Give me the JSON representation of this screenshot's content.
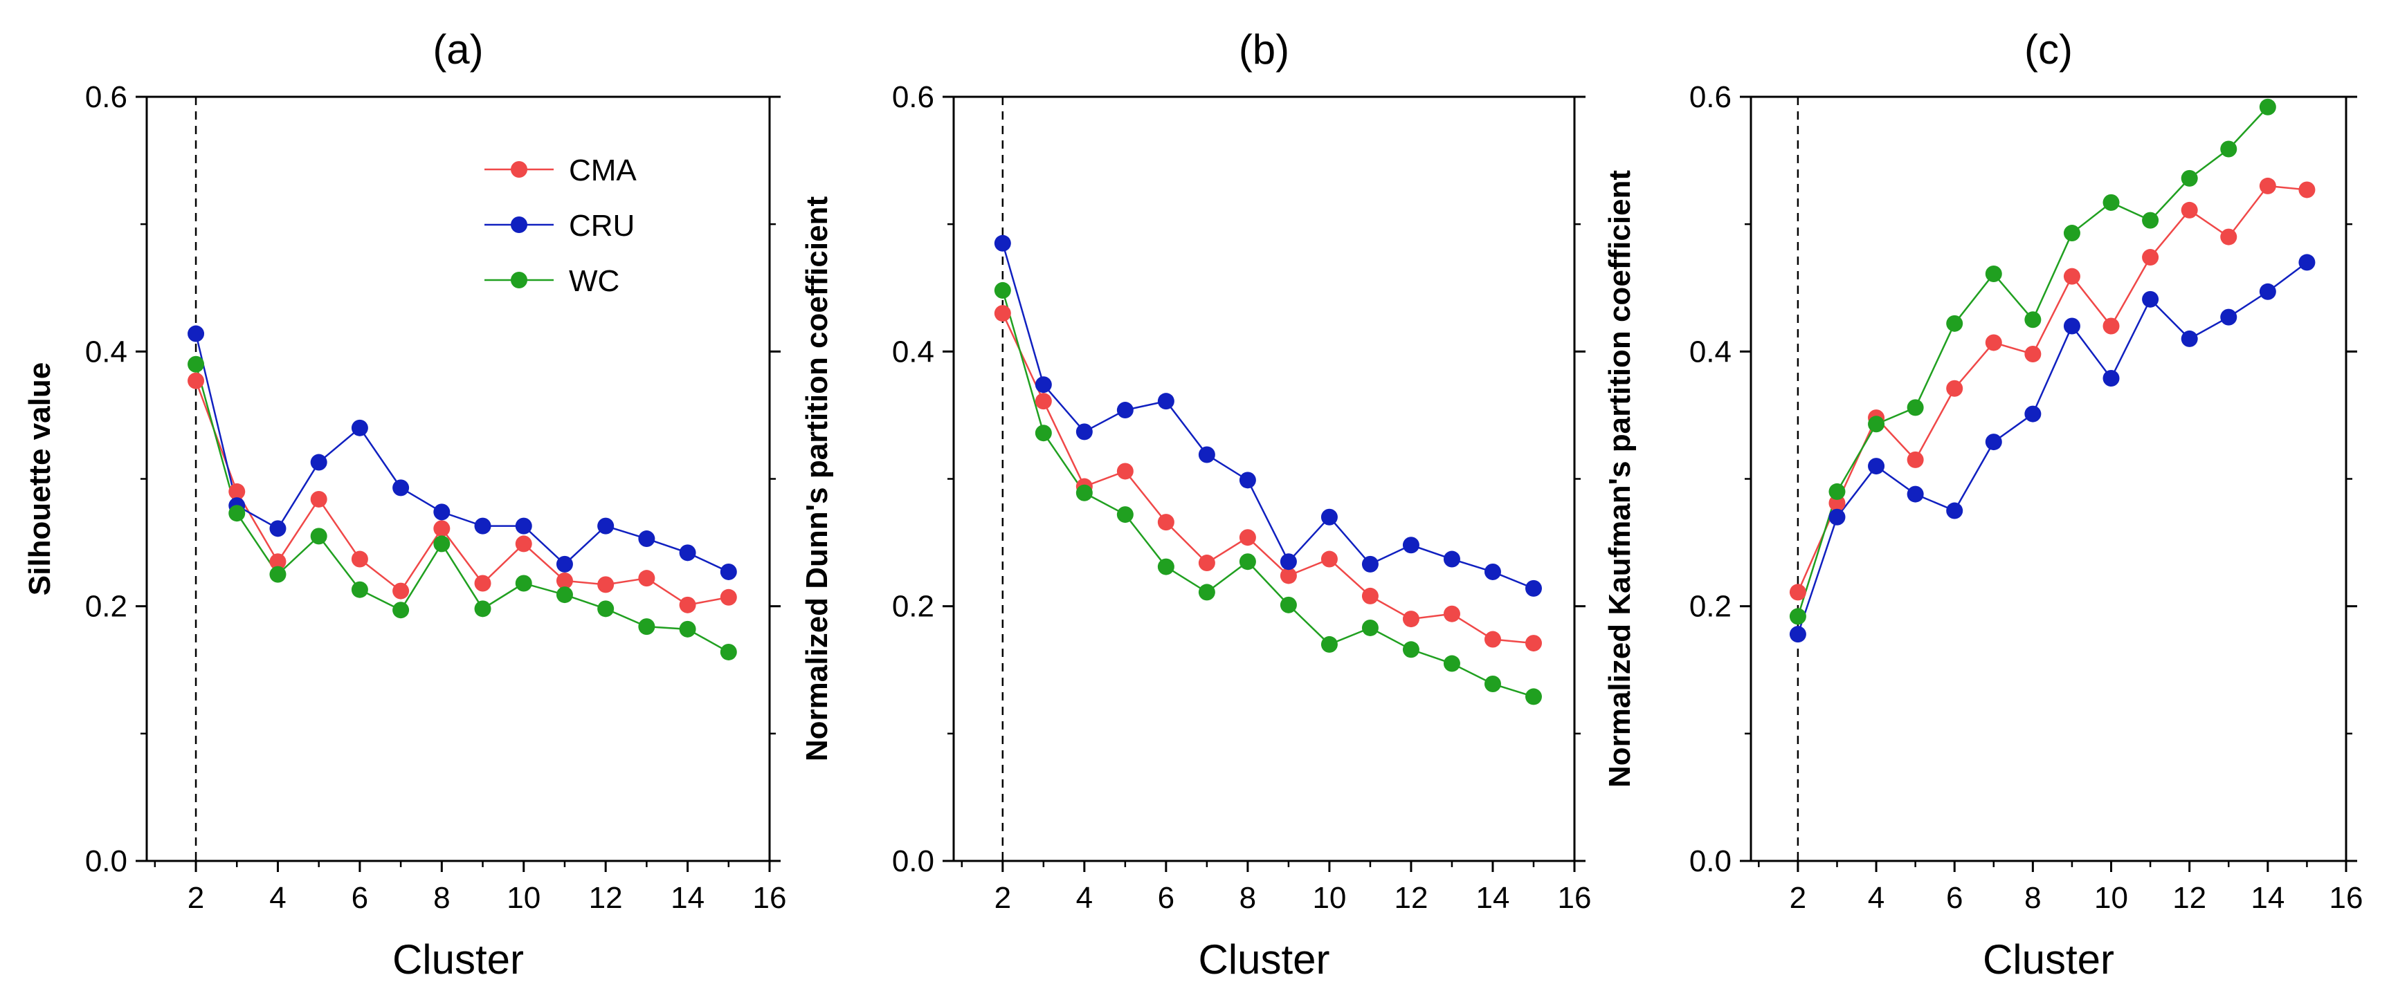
{
  "colors": {
    "CMA": "#f04848",
    "CRU": "#1020c0",
    "WC": "#20a020"
  },
  "chart_data": [
    {
      "type": "line",
      "title": "(a)",
      "xlabel": "Cluster",
      "ylabel": "Silhouette value",
      "xlim": [
        0.8,
        16
      ],
      "ylim": [
        0,
        0.6
      ],
      "xticks": [
        2,
        4,
        6,
        8,
        10,
        12,
        14,
        16
      ],
      "yticks": [
        0.0,
        0.2,
        0.4,
        0.6
      ],
      "ytick_labels": [
        "0.0",
        "0.2",
        "0.4",
        "0.6"
      ],
      "marker_line_x": 2,
      "x": [
        2,
        3,
        4,
        5,
        6,
        7,
        8,
        9,
        10,
        11,
        12,
        13,
        14,
        15
      ],
      "legend": {
        "position": "top-right",
        "entries": [
          "CMA",
          "CRU",
          "WC"
        ]
      },
      "series": [
        {
          "name": "CMA",
          "values": [
            0.377,
            0.29,
            0.235,
            0.284,
            0.237,
            0.212,
            0.261,
            0.218,
            0.249,
            0.22,
            0.217,
            0.222,
            0.201,
            0.207
          ]
        },
        {
          "name": "CRU",
          "values": [
            0.414,
            0.279,
            0.261,
            0.313,
            0.34,
            0.293,
            0.274,
            0.263,
            0.263,
            0.233,
            0.263,
            0.253,
            0.242,
            0.227
          ]
        },
        {
          "name": "WC",
          "values": [
            0.39,
            0.273,
            0.225,
            0.255,
            0.213,
            0.197,
            0.249,
            0.198,
            0.218,
            0.209,
            0.198,
            0.184,
            0.182,
            0.164
          ]
        }
      ]
    },
    {
      "type": "line",
      "title": "(b)",
      "xlabel": "Cluster",
      "ylabel": "Normalized Dunn's partition coefficient",
      "xlim": [
        0.8,
        16
      ],
      "ylim": [
        0,
        0.6
      ],
      "xticks": [
        2,
        4,
        6,
        8,
        10,
        12,
        14,
        16
      ],
      "yticks": [
        0.0,
        0.2,
        0.4,
        0.6
      ],
      "ytick_labels": [
        "0.0",
        "0.2",
        "0.4",
        "0.6"
      ],
      "marker_line_x": 2,
      "x": [
        2,
        3,
        4,
        5,
        6,
        7,
        8,
        9,
        10,
        11,
        12,
        13,
        14,
        15
      ],
      "series": [
        {
          "name": "CMA",
          "values": [
            0.43,
            0.361,
            0.294,
            0.306,
            0.266,
            0.234,
            0.254,
            0.224,
            0.237,
            0.208,
            0.19,
            0.194,
            0.174,
            0.171
          ]
        },
        {
          "name": "CRU",
          "values": [
            0.485,
            0.374,
            0.337,
            0.354,
            0.361,
            0.319,
            0.299,
            0.235,
            0.27,
            0.233,
            0.248,
            0.237,
            0.227,
            0.214
          ]
        },
        {
          "name": "WC",
          "values": [
            0.448,
            0.336,
            0.289,
            0.272,
            0.231,
            0.211,
            0.235,
            0.201,
            0.17,
            0.183,
            0.166,
            0.155,
            0.139,
            0.129
          ]
        }
      ]
    },
    {
      "type": "line",
      "title": "(c)",
      "xlabel": "Cluster",
      "ylabel": "Normalized Kaufman's partition coefficient",
      "xlim": [
        0.8,
        16
      ],
      "ylim": [
        0,
        0.6
      ],
      "xticks": [
        2,
        4,
        6,
        8,
        10,
        12,
        14,
        16
      ],
      "yticks": [
        0.0,
        0.2,
        0.4,
        0.6
      ],
      "ytick_labels": [
        "0.0",
        "0.2",
        "0.4",
        "0.6"
      ],
      "marker_line_x": 2,
      "x": [
        2,
        3,
        4,
        5,
        6,
        7,
        8,
        9,
        10,
        11,
        12,
        13,
        14,
        15
      ],
      "series": [
        {
          "name": "CMA",
          "values": [
            0.211,
            0.281,
            0.348,
            0.315,
            0.371,
            0.407,
            0.398,
            0.459,
            0.42,
            0.474,
            0.511,
            0.49,
            0.53,
            0.527
          ]
        },
        {
          "name": "CRU",
          "values": [
            0.178,
            0.27,
            0.31,
            0.288,
            0.275,
            0.329,
            0.351,
            0.42,
            0.379,
            0.441,
            0.41,
            0.427,
            0.447,
            0.47
          ]
        },
        {
          "name": "WC",
          "values": [
            0.192,
            0.29,
            0.343,
            0.356,
            0.422,
            0.461,
            0.425,
            0.493,
            0.517,
            0.503,
            0.536,
            0.559,
            0.592,
            null
          ]
        }
      ]
    }
  ]
}
